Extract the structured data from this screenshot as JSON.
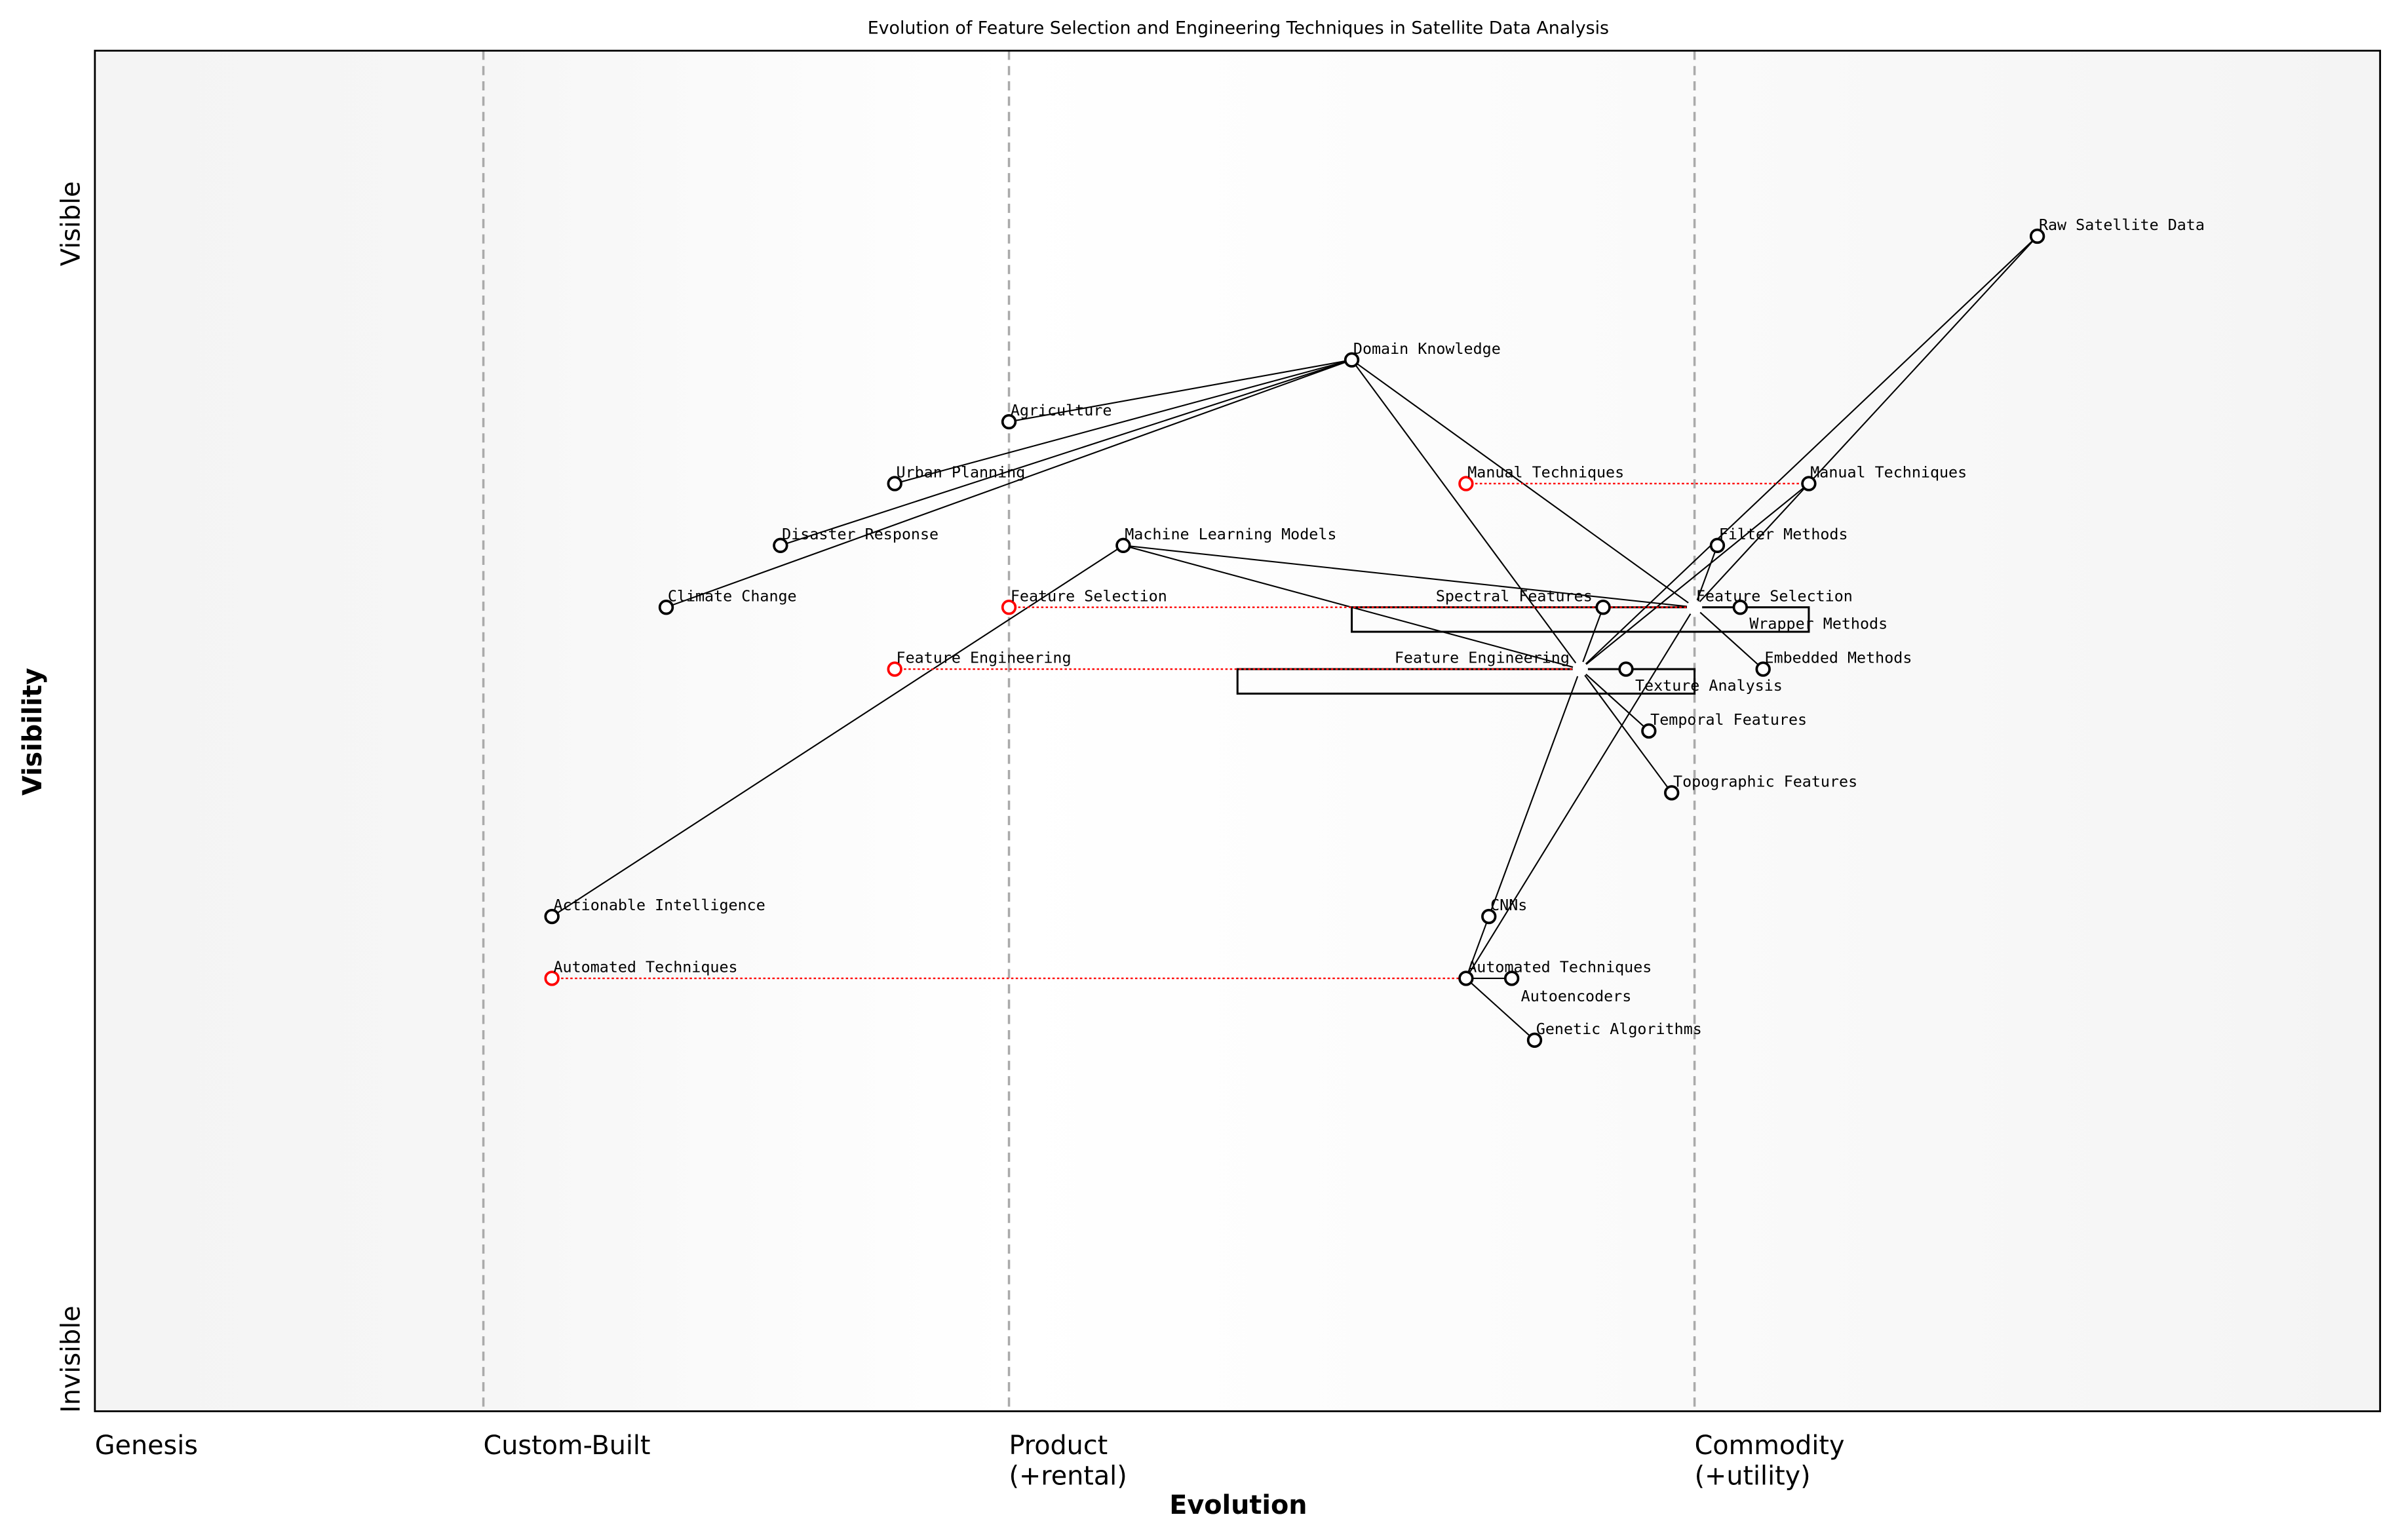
{
  "chart_data": {
    "type": "scatter",
    "subtype": "wardley-map",
    "title": "Evolution of Feature Selection and Engineering Techniques in Satellite Data Analysis",
    "xlabel": "Evolution",
    "ylabel": "Visibility",
    "xlim": [
      0,
      1
    ],
    "ylim": [
      -0.05,
      1.05
    ],
    "y_end_labels": {
      "bottom": "Invisible",
      "top": "Visible"
    },
    "stages": [
      {
        "label": "Genesis",
        "x": 0
      },
      {
        "label": "Custom-Built",
        "x": 0.17
      },
      {
        "label": "Product\n(+rental)",
        "x": 0.4
      },
      {
        "label": "Commodity\n(+utility)",
        "x": 0.7
      }
    ],
    "grid": false,
    "legend": "none",
    "colors": {
      "node": "#000000",
      "evolved_node": "#ff0000",
      "stage_line": "#aaaaaa",
      "evolution_line": "#ff0000"
    },
    "nodes": [
      {
        "id": "raw",
        "label": "Raw Satellite Data",
        "x": 0.85,
        "y": 0.9
      },
      {
        "id": "dk",
        "label": "Domain Knowledge",
        "x": 0.55,
        "y": 0.8
      },
      {
        "id": "agri",
        "label": "Agriculture",
        "x": 0.4,
        "y": 0.75
      },
      {
        "id": "urban",
        "label": "Urban Planning",
        "x": 0.35,
        "y": 0.7
      },
      {
        "id": "disaster",
        "label": "Disaster Response",
        "x": 0.3,
        "y": 0.65
      },
      {
        "id": "climate",
        "label": "Climate Change",
        "x": 0.25,
        "y": 0.6
      },
      {
        "id": "ml",
        "label": "Machine Learning Models",
        "x": 0.45,
        "y": 0.65
      },
      {
        "id": "act",
        "label": "Actionable Intelligence",
        "x": 0.2,
        "y": 0.35
      },
      {
        "id": "manual",
        "label": "Manual Techniques",
        "x": 0.75,
        "y": 0.7
      },
      {
        "id": "filter",
        "label": "Filter Methods",
        "x": 0.71,
        "y": 0.65
      },
      {
        "id": "fs",
        "label": "Feature Selection",
        "x": 0.7,
        "y": 0.6,
        "hidden": true
      },
      {
        "id": "spectral",
        "label": "Spectral Features",
        "x": 0.66,
        "y": 0.6
      },
      {
        "id": "wrapper",
        "label": "Wrapper Methods",
        "x": 0.72,
        "y": 0.6
      },
      {
        "id": "fe",
        "label": "Feature Engineering",
        "x": 0.65,
        "y": 0.55,
        "hidden": true
      },
      {
        "id": "texture",
        "label": "Texture Analysis",
        "x": 0.67,
        "y": 0.55
      },
      {
        "id": "embedded",
        "label": "Embedded Methods",
        "x": 0.73,
        "y": 0.55
      },
      {
        "id": "temporal",
        "label": "Temporal Features",
        "x": 0.68,
        "y": 0.5
      },
      {
        "id": "topo",
        "label": "Topographic Features",
        "x": 0.69,
        "y": 0.45
      },
      {
        "id": "cnns",
        "label": "CNNs",
        "x": 0.61,
        "y": 0.35
      },
      {
        "id": "auto",
        "label": "Automated Techniques",
        "x": 0.6,
        "y": 0.3
      },
      {
        "id": "autoenc",
        "label": "Autoencoders",
        "x": 0.62,
        "y": 0.3
      },
      {
        "id": "genetic",
        "label": "Genetic Algorithms",
        "x": 0.63,
        "y": 0.25
      }
    ],
    "evolved_nodes": [
      {
        "label": "Manual Techniques",
        "x": 0.6,
        "y": 0.7,
        "to": "manual"
      },
      {
        "label": "Feature Selection",
        "x": 0.4,
        "y": 0.6,
        "to": "fs"
      },
      {
        "label": "Feature Engineering",
        "x": 0.35,
        "y": 0.55,
        "to": "fe"
      },
      {
        "label": "Automated Techniques",
        "x": 0.2,
        "y": 0.3,
        "to": "auto"
      }
    ],
    "edges": [
      [
        "dk",
        "agri"
      ],
      [
        "dk",
        "urban"
      ],
      [
        "dk",
        "disaster"
      ],
      [
        "dk",
        "climate"
      ],
      [
        "dk",
        "fs"
      ],
      [
        "dk",
        "fe"
      ],
      [
        "ml",
        "act"
      ],
      [
        "ml",
        "fs"
      ],
      [
        "ml",
        "fe"
      ],
      [
        "raw",
        "fe"
      ],
      [
        "raw",
        "manual"
      ],
      [
        "fs",
        "filter"
      ],
      [
        "fs",
        "wrapper"
      ],
      [
        "fs",
        "embedded"
      ],
      [
        "fs",
        "manual"
      ],
      [
        "fs",
        "auto"
      ],
      [
        "fe",
        "spectral"
      ],
      [
        "fe",
        "texture"
      ],
      [
        "fe",
        "temporal"
      ],
      [
        "fe",
        "topo"
      ],
      [
        "fe",
        "manual"
      ],
      [
        "fe",
        "cnns"
      ],
      [
        "auto",
        "cnns"
      ],
      [
        "auto",
        "autoenc"
      ],
      [
        "auto",
        "genetic"
      ]
    ]
  }
}
